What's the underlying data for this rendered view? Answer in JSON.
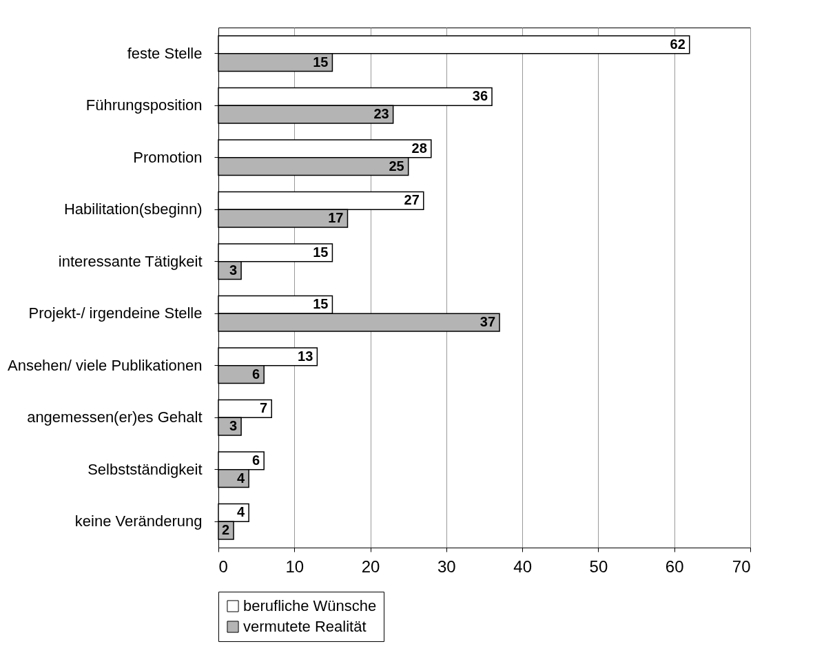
{
  "chart_data": {
    "type": "bar",
    "orientation": "horizontal",
    "categories": [
      "feste Stelle",
      "Führungsposition",
      "Promotion",
      "Habilitation(sbeginn)",
      "interessante Tätigkeit",
      "Projekt-/ irgendeine Stelle",
      "Ansehen/ viele Publikationen",
      "angemessen(er)es Gehalt",
      "Selbstständigkeit",
      "keine Veränderung"
    ],
    "series": [
      {
        "name": "berufliche Wünsche",
        "color": "#ffffff",
        "values": [
          62,
          36,
          28,
          27,
          15,
          15,
          13,
          7,
          6,
          4
        ]
      },
      {
        "name": "vermutete Realität",
        "color": "#b4b4b4",
        "values": [
          15,
          23,
          25,
          17,
          3,
          37,
          6,
          3,
          4,
          2
        ]
      }
    ],
    "xlim": [
      0,
      70
    ],
    "xticks": [
      0,
      10,
      20,
      30,
      40,
      50,
      60,
      70
    ],
    "grid": "x",
    "legend": "bottom",
    "data_labels": true
  }
}
